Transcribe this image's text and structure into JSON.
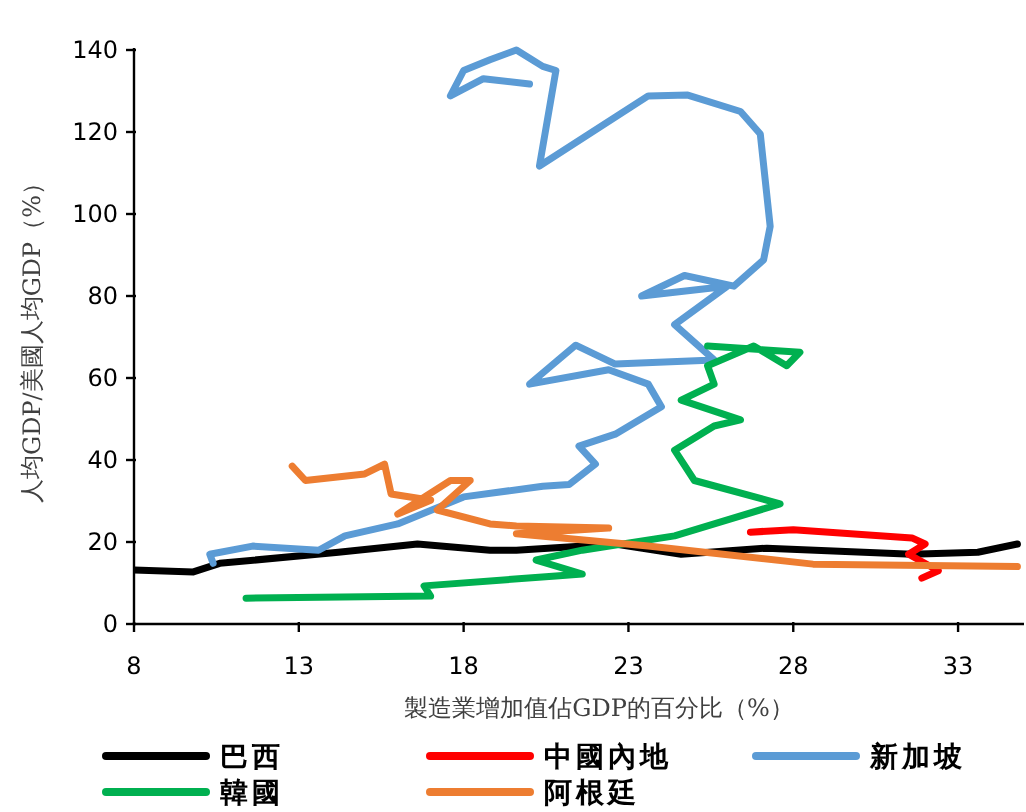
{
  "chart_data": {
    "type": "line",
    "xlabel": "製造業增加值佔GDP的百分比（%）",
    "ylabel": "人均GDP/美國人均GDP（%）",
    "xlim": [
      8,
      35
    ],
    "xticks": [
      8,
      13,
      18,
      23,
      28,
      33
    ],
    "ylim": [
      0,
      140
    ],
    "yticks": [
      0,
      20,
      40,
      60,
      80,
      100,
      120,
      140
    ],
    "legend": "bottom",
    "grid": false,
    "marker": "none",
    "line_style": "solid",
    "series": [
      {
        "name": "巴西",
        "color": "#000000",
        "x": [
          8,
          9.8,
          10.6,
          14.2,
          16.6,
          18.8,
          19.6,
          22.6,
          24.6,
          27.2,
          31.6,
          33.6,
          34.8
        ],
        "values": [
          13.2,
          12.7,
          14.8,
          17.5,
          19.5,
          18,
          18,
          19.5,
          17,
          18.5,
          17,
          17.5,
          19.5
        ]
      },
      {
        "name": "中國內地",
        "color": "#ff0000",
        "x": [
          26.7,
          28,
          31.6,
          32,
          31.5,
          32.4,
          31.9
        ],
        "values": [
          22.4,
          23,
          21,
          19.5,
          17,
          13,
          11.2
        ]
      },
      {
        "name": "新加坡",
        "color": "#5b9bd5",
        "x": [
          10.4,
          10.3,
          11.6,
          13.6,
          14.4,
          16,
          18,
          20.4,
          21.2,
          22,
          21.5,
          22.6,
          24,
          23.6,
          22.4,
          20,
          21.4,
          22.6,
          25.6,
          24.4,
          26,
          23.4,
          24.7,
          26.2,
          27.1,
          27.3,
          27,
          26.4,
          24.8,
          23.6,
          20.3,
          20.8,
          20.4,
          19.6,
          18.8,
          18,
          17.6,
          18.6,
          20
        ],
        "values": [
          14.8,
          17,
          19,
          18,
          21.5,
          24.4,
          31,
          33.6,
          34,
          39,
          43.4,
          46.3,
          53,
          58.5,
          62,
          58.5,
          68,
          63.4,
          64.4,
          73,
          82.4,
          80,
          85,
          82.4,
          88.8,
          97,
          119.5,
          125,
          129,
          128.8,
          111.7,
          135,
          136,
          140,
          137.6,
          135,
          128.8,
          133,
          131.7
        ]
      },
      {
        "name": "韓國",
        "color": "#00b050",
        "x": [
          11.4,
          17,
          16.8,
          20.8,
          21.6,
          20.2,
          21.6,
          24.4,
          27.6,
          25,
          24.4,
          25.6,
          26.4,
          24.6,
          25.6,
          25.4,
          26.8,
          27.8,
          28.2,
          25.4
        ],
        "values": [
          6.3,
          6.8,
          9.3,
          11.7,
          12.2,
          15.6,
          18,
          21.5,
          29.3,
          35,
          42.4,
          48.3,
          49.8,
          54.6,
          58.5,
          63,
          67.8,
          63,
          66.3,
          67.8
        ]
      },
      {
        "name": "阿根廷",
        "color": "#ed7d31",
        "x": [
          12.8,
          13.2,
          15,
          15.6,
          15.8,
          17,
          16,
          17.6,
          18.2,
          17.2,
          18.8,
          19.6,
          22.4,
          19.6,
          23.6,
          28.6,
          34.8
        ],
        "values": [
          38.5,
          35,
          36.6,
          39,
          31.7,
          30.2,
          26.8,
          35,
          35,
          27.8,
          24.4,
          23.9,
          23.4,
          22,
          19,
          14.6,
          14
        ]
      }
    ]
  }
}
